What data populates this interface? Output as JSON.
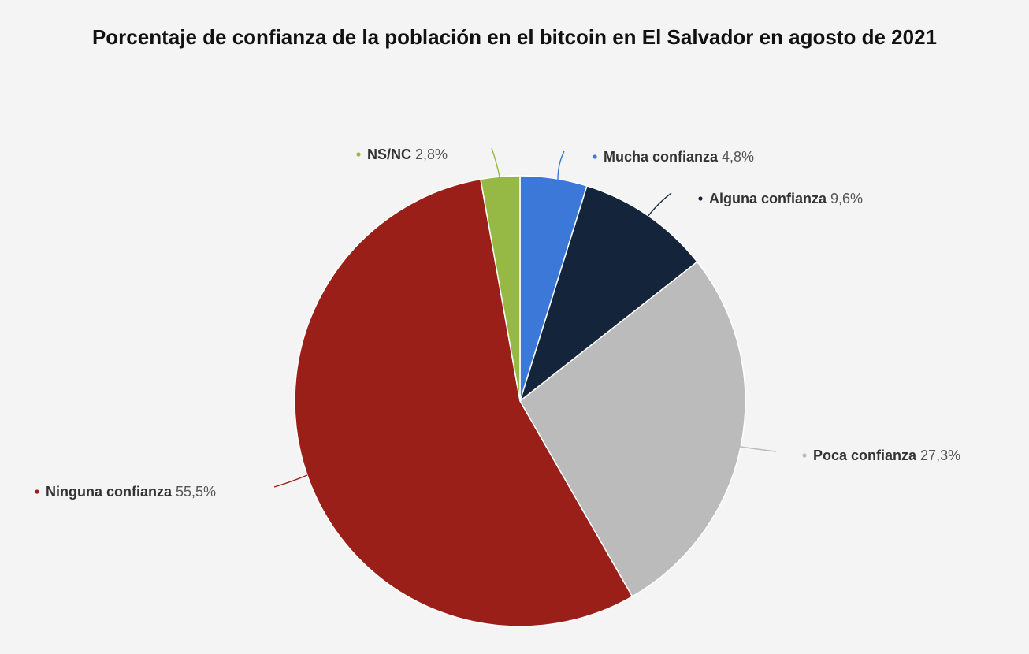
{
  "chart_data": {
    "type": "pie",
    "title": "Porcentaje de confianza de la población en el bitcoin en El Salvador en agosto de 2021",
    "slices": [
      {
        "label": "Mucha confianza",
        "value": 4.8,
        "value_text": "4,8%",
        "color": "#3c78d8"
      },
      {
        "label": "Alguna confianza",
        "value": 9.6,
        "value_text": "9,6%",
        "color": "#14243b"
      },
      {
        "label": "Poca confianza",
        "value": 27.3,
        "value_text": "27,3%",
        "color": "#bbbbbb"
      },
      {
        "label": "Ninguna confianza",
        "value": 55.5,
        "value_text": "55,5%",
        "color": "#9a1f19"
      },
      {
        "label": "NS/NC",
        "value": 2.8,
        "value_text": "2,8%",
        "color": "#95b944"
      }
    ],
    "legend": "none",
    "label_placement": "outside-with-leader-lines"
  }
}
